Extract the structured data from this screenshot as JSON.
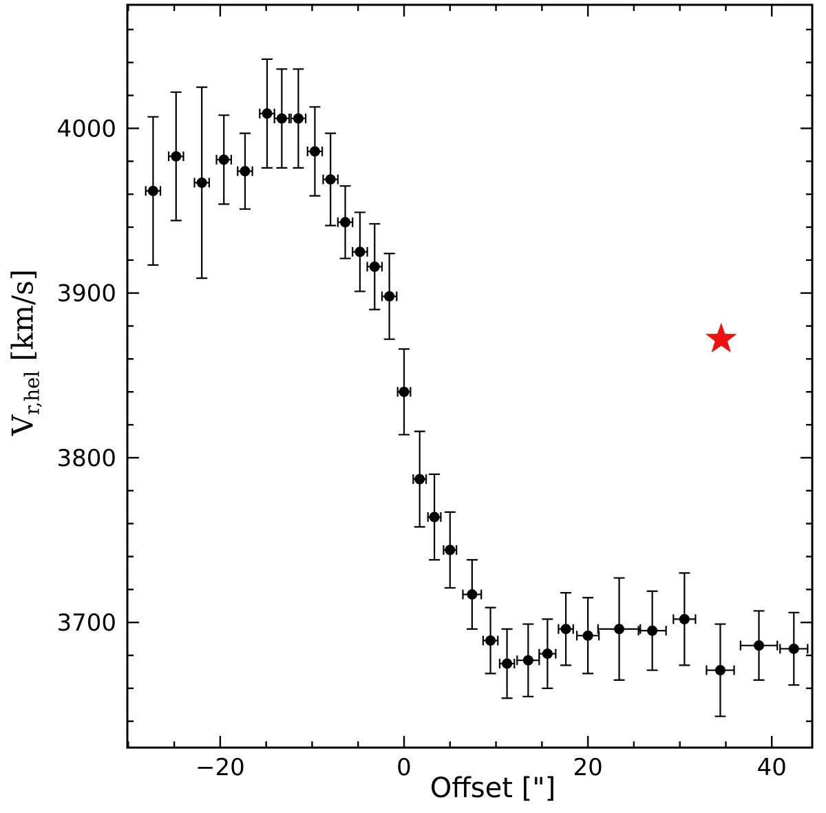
{
  "labels": {
    "y_symbol": "V",
    "y_subscript": "r,hel",
    "y_unit": "[km/s]"
  },
  "colors": {
    "marker": "#000000",
    "frame": "#000000",
    "star": "#ee1111",
    "background": "#ffffff"
  },
  "chart_data": {
    "type": "scatter",
    "title": "",
    "xlabel": "Offset [\"]",
    "ylabel": "V_r,hel [km/s]",
    "xlim": [
      -30.1,
      44.4
    ],
    "ylim": [
      3624,
      4075
    ],
    "grid": false,
    "legend": "none",
    "x_major_ticks": [
      {
        "value": -20,
        "label": "−20"
      },
      {
        "value": 0,
        "label": "0"
      },
      {
        "value": 20,
        "label": "20"
      },
      {
        "value": 40,
        "label": "40"
      }
    ],
    "x_minor_step": 5,
    "y_major_ticks": [
      {
        "value": 3700,
        "label": "3700"
      },
      {
        "value": 3800,
        "label": "3800"
      },
      {
        "value": 3900,
        "label": "3900"
      },
      {
        "value": 4000,
        "label": "4000"
      }
    ],
    "y_minor_step": 20,
    "series": [
      {
        "name": "rotation-curve",
        "marker": "circle",
        "color": "#000000",
        "points": [
          {
            "x": -27.3,
            "y": 3962,
            "yerr": 45,
            "xerr": 0.8
          },
          {
            "x": -24.8,
            "y": 3983,
            "yerr": 39,
            "xerr": 0.8
          },
          {
            "x": -22.0,
            "y": 3967,
            "yerr": 58,
            "xerr": 0.8
          },
          {
            "x": -19.6,
            "y": 3981,
            "yerr": 27,
            "xerr": 0.8
          },
          {
            "x": -17.3,
            "y": 3974,
            "yerr": 23,
            "xerr": 0.8
          },
          {
            "x": -14.9,
            "y": 4009,
            "yerr": 33,
            "xerr": 0.8
          },
          {
            "x": -13.3,
            "y": 4006,
            "yerr": 30,
            "xerr": 0.8
          },
          {
            "x": -11.5,
            "y": 4006,
            "yerr": 30,
            "xerr": 0.8
          },
          {
            "x": -9.7,
            "y": 3986,
            "yerr": 27,
            "xerr": 0.8
          },
          {
            "x": -8.0,
            "y": 3969,
            "yerr": 28,
            "xerr": 0.8
          },
          {
            "x": -6.4,
            "y": 3943,
            "yerr": 22,
            "xerr": 0.8
          },
          {
            "x": -4.8,
            "y": 3925,
            "yerr": 24,
            "xerr": 0.8
          },
          {
            "x": -3.2,
            "y": 3916,
            "yerr": 26,
            "xerr": 0.8
          },
          {
            "x": -1.6,
            "y": 3898,
            "yerr": 26,
            "xerr": 0.8
          },
          {
            "x": 0.0,
            "y": 3840,
            "yerr": 26,
            "xerr": 0.7
          },
          {
            "x": 1.7,
            "y": 3787,
            "yerr": 29,
            "xerr": 0.7
          },
          {
            "x": 3.3,
            "y": 3764,
            "yerr": 26,
            "xerr": 0.7
          },
          {
            "x": 5.0,
            "y": 3744,
            "yerr": 23,
            "xerr": 0.7
          },
          {
            "x": 7.4,
            "y": 3717,
            "yerr": 21,
            "xerr": 1.0
          },
          {
            "x": 9.4,
            "y": 3689,
            "yerr": 20,
            "xerr": 0.8
          },
          {
            "x": 11.2,
            "y": 3675,
            "yerr": 21,
            "xerr": 0.8
          },
          {
            "x": 13.5,
            "y": 3677,
            "yerr": 22,
            "xerr": 1.2
          },
          {
            "x": 15.6,
            "y": 3681,
            "yerr": 21,
            "xerr": 0.9
          },
          {
            "x": 17.6,
            "y": 3696,
            "yerr": 22,
            "xerr": 0.8
          },
          {
            "x": 20.0,
            "y": 3692,
            "yerr": 23,
            "xerr": 1.2
          },
          {
            "x": 23.4,
            "y": 3696,
            "yerr": 31,
            "xerr": 2.3
          },
          {
            "x": 27.0,
            "y": 3695,
            "yerr": 24,
            "xerr": 1.5
          },
          {
            "x": 30.5,
            "y": 3702,
            "yerr": 28,
            "xerr": 1.2
          },
          {
            "x": 34.4,
            "y": 3671,
            "yerr": 28,
            "xerr": 1.5
          },
          {
            "x": 38.6,
            "y": 3686,
            "yerr": 21,
            "xerr": 2.0
          },
          {
            "x": 42.4,
            "y": 3684,
            "yerr": 22,
            "xerr": 1.5
          }
        ]
      },
      {
        "name": "systemic-velocity-star",
        "marker": "star",
        "color": "#ee1111",
        "points": [
          {
            "x": 34.5,
            "y": 3872
          }
        ]
      }
    ]
  }
}
